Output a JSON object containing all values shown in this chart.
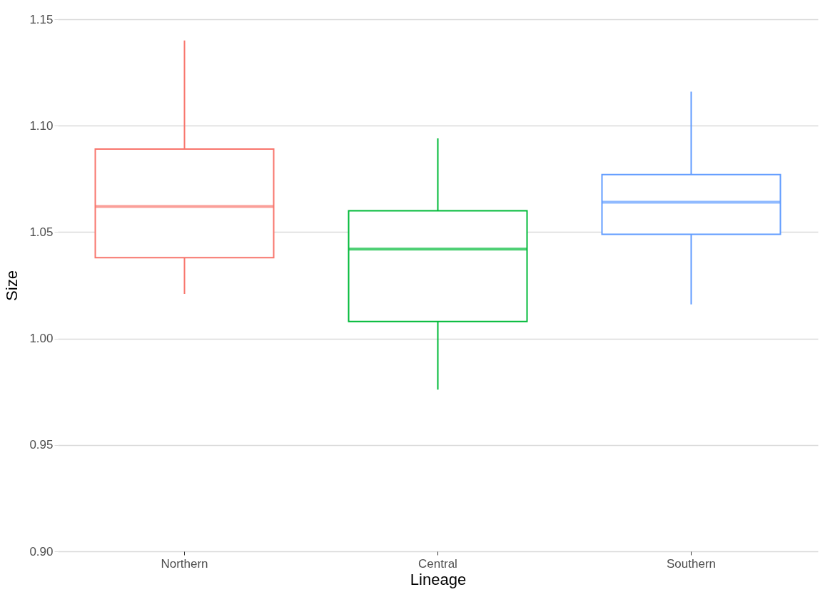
{
  "chart_data": {
    "type": "box",
    "xlabel": "Lineage",
    "ylabel": "Size",
    "categories": [
      "Northern",
      "Central",
      "Southern"
    ],
    "colors": [
      "#f8766d",
      "#00ba38",
      "#619cff"
    ],
    "boxes": [
      {
        "low": 1.021,
        "q1": 1.038,
        "median": 1.062,
        "q3": 1.089,
        "high": 1.14
      },
      {
        "low": 0.976,
        "q1": 1.008,
        "median": 1.042,
        "q3": 1.06,
        "high": 1.094
      },
      {
        "low": 1.016,
        "q1": 1.049,
        "median": 1.064,
        "q3": 1.077,
        "high": 1.116
      }
    ],
    "ylim": [
      0.9,
      1.15
    ],
    "yticks": [
      {
        "value": 0.9,
        "label": "0.90"
      },
      {
        "value": 0.95,
        "label": "0.95"
      },
      {
        "value": 1.0,
        "label": "1.00"
      },
      {
        "value": 1.05,
        "label": "1.05"
      },
      {
        "value": 1.1,
        "label": "1.10"
      },
      {
        "value": 1.15,
        "label": "1.15"
      }
    ],
    "grid": "y",
    "legend": false
  }
}
